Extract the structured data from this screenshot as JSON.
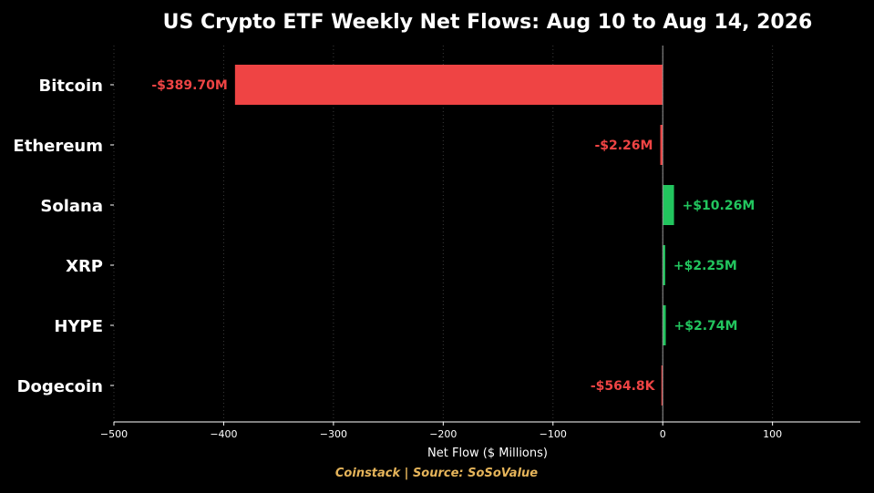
{
  "colors": {
    "background": "#000000",
    "negative": "#ef4444",
    "positive": "#22c55e",
    "text": "#ffffff",
    "grid": "#3a3a3a",
    "footer": "#e5b45a",
    "zero_line": "#999999"
  },
  "footer_text": "Coinstack | Source: SoSoValue",
  "chart_data": {
    "type": "bar",
    "orientation": "horizontal",
    "title": "US Crypto ETF Weekly Net Flows: Aug 10 to Aug 14, 2026",
    "xlabel": "Net Flow ($ Millions)",
    "ylabel": "",
    "xlim": [
      -500,
      180
    ],
    "xticks": [
      -500,
      -400,
      -300,
      -200,
      -100,
      0,
      100
    ],
    "xtick_labels": [
      "−500",
      "−400",
      "−300",
      "−200",
      "−100",
      "0",
      "100"
    ],
    "grid": "vertical dotted",
    "categories": [
      "Bitcoin",
      "Ethereum",
      "Solana",
      "XRP",
      "HYPE",
      "Dogecoin"
    ],
    "values": [
      -389.7,
      -2.26,
      10.26,
      2.25,
      2.74,
      -0.5648
    ],
    "value_labels": [
      "-$389.70M",
      "-$2.26M",
      "+$10.26M",
      "+$2.25M",
      "+$2.74M",
      "-$564.8K"
    ]
  }
}
